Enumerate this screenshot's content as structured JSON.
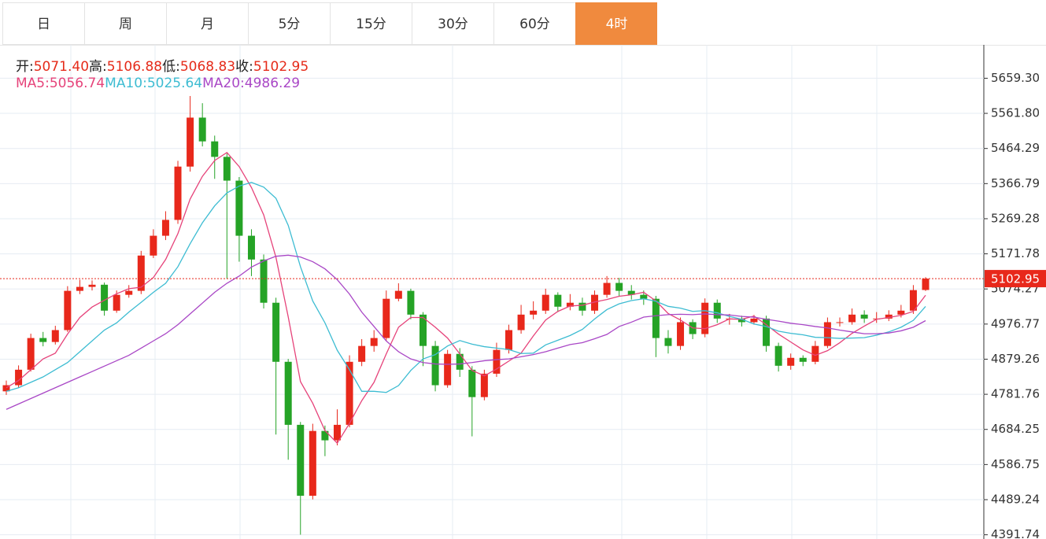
{
  "tabs": {
    "items": [
      "日",
      "周",
      "月",
      "5分",
      "15分",
      "30分",
      "60分",
      "4时"
    ],
    "active": 7
  },
  "chart_data": {
    "type": "candlestick",
    "header": [
      {
        "label": "开:",
        "value": "5071.40"
      },
      {
        "label": "高:",
        "value": "5106.88"
      },
      {
        "label": "低:",
        "value": "5068.83"
      },
      {
        "label": "收:",
        "value": "5102.95"
      }
    ],
    "ma_legend": [
      {
        "label": "MA5:",
        "value": "5056.74"
      },
      {
        "label": "MA10:",
        "value": "5025.64"
      },
      {
        "label": "MA20:",
        "value": "4986.29"
      }
    ],
    "ylim": [
      4380,
      5752
    ],
    "yticks": [
      {
        "value": 5659.3,
        "label": "5659.30"
      },
      {
        "value": 5561.8,
        "label": "5561.80"
      },
      5464.29,
      5366.79,
      5269.28,
      5171.78,
      5074.27,
      4976.77,
      4879.26,
      4781.76,
      4684.25,
      4586.75,
      4489.24,
      4391.74
    ],
    "grid": true,
    "up_color": "#e8281b",
    "down_color": "#25a326",
    "last_color": "#e8281b",
    "open": [
      4790,
      4807,
      4850,
      4938,
      4927,
      4960,
      5069,
      5080,
      5086,
      5014,
      5058,
      5069,
      5167,
      5222,
      5266,
      5414,
      5550,
      5484,
      5441,
      5375,
      5222,
      5156,
      5036,
      4872,
      4697,
      4500,
      4680,
      4654,
      4697,
      4872,
      4916,
      4938,
      5047,
      5069,
      5003,
      4916,
      4807,
      4894,
      4850,
      4774,
      4839,
      4905,
      4960,
      5003,
      5014,
      5058,
      5025,
      5036,
      5014,
      5058,
      5091,
      5069,
      5058,
      5047,
      4938,
      4916,
      4982,
      4949,
      5036,
      4992,
      4992,
      4982,
      4992,
      4916,
      4861,
      4883,
      4872,
      4916,
      4982,
      4982,
      5003,
      4992,
      4992,
      5003,
      5014,
      5071.4
    ],
    "high": [
      4820,
      4862,
      4950,
      4955,
      4972,
      5082,
      5100,
      5098,
      5092,
      5070,
      5085,
      5180,
      5240,
      5290,
      5430,
      5610,
      5590,
      5500,
      5450,
      5385,
      5240,
      5170,
      5050,
      4880,
      4705,
      4700,
      4695,
      4740,
      4890,
      4935,
      4960,
      5070,
      5090,
      5075,
      5010,
      4930,
      4905,
      4910,
      4860,
      4850,
      4925,
      4975,
      5030,
      5040,
      5075,
      5065,
      5060,
      5050,
      5070,
      5110,
      5105,
      5085,
      5070,
      5055,
      4960,
      4995,
      4990,
      5048,
      5045,
      5005,
      5000,
      5002,
      5000,
      4925,
      4895,
      4890,
      4930,
      4995,
      4995,
      5020,
      5015,
      5010,
      5015,
      5030,
      5085,
      5106.88
    ],
    "low": [
      4780,
      4800,
      4845,
      4915,
      4920,
      4955,
      5060,
      5070,
      5000,
      5008,
      5050,
      5060,
      5160,
      5210,
      5255,
      5400,
      5470,
      5380,
      5102,
      5150,
      5110,
      5020,
      4670,
      4600,
      4392,
      4490,
      4610,
      4640,
      4690,
      4860,
      4900,
      4930,
      5040,
      4990,
      4860,
      4790,
      4800,
      4830,
      4665,
      4765,
      4830,
      4895,
      4950,
      4990,
      5005,
      5010,
      5015,
      5000,
      5005,
      5050,
      5055,
      5045,
      5030,
      4885,
      4895,
      4905,
      4935,
      4940,
      4980,
      4975,
      4970,
      4975,
      4900,
      4845,
      4850,
      4860,
      4865,
      4910,
      4970,
      4975,
      4980,
      4980,
      4985,
      4995,
      5005,
      5068.83
    ],
    "close": [
      4807,
      4850,
      4938,
      4927,
      4960,
      5069,
      5080,
      5086,
      5014,
      5058,
      5069,
      5167,
      5222,
      5266,
      5414,
      5550,
      5484,
      5441,
      5375,
      5222,
      5156,
      5036,
      4872,
      4697,
      4500,
      4680,
      4654,
      4697,
      4872,
      4916,
      4938,
      5047,
      5069,
      5003,
      4916,
      4807,
      4894,
      4850,
      4774,
      4839,
      4905,
      4960,
      5003,
      5014,
      5058,
      5025,
      5036,
      5014,
      5058,
      5091,
      5069,
      5058,
      5047,
      4938,
      4916,
      4982,
      4949,
      5036,
      4992,
      4992,
      4982,
      4992,
      4916,
      4861,
      4883,
      4872,
      4916,
      4982,
      4982,
      5003,
      4992,
      4992,
      5003,
      5014,
      5071,
      5102.95
    ],
    "series": [
      {
        "color": "#e6437a",
        "values": [
          4800,
          4820,
          4850,
          4880,
          4896,
          4949,
          4995,
          5024,
          5043,
          5061,
          5075,
          5079,
          5106,
          5156,
          5228,
          5324,
          5387,
          5431,
          5453,
          5414,
          5356,
          5280,
          5162,
          4997,
          4817,
          4757,
          4681,
          4646,
          4701,
          4764,
          4815,
          4894,
          4968,
          4995,
          4995,
          4968,
          4938,
          4894,
          4848,
          4833,
          4852,
          4874,
          4896,
          4944,
          4988,
          5012,
          5027,
          5029,
          5038,
          5045,
          5054,
          5058,
          5065,
          5041,
          5006,
          4988,
          4966,
          4964,
          4975,
          4991,
          4990,
          4999,
          4975,
          4949,
          4927,
          4905,
          4890,
          4903,
          4925,
          4951,
          4971,
          4990,
          4995,
          5001,
          5012,
          5056.74
        ]
      },
      {
        "color": "#3dbcd2",
        "values": [
          4790,
          4800,
          4815,
          4830,
          4850,
          4870,
          4900,
          4930,
          4960,
          4980,
          5010,
          5037,
          5065,
          5090,
          5136,
          5200,
          5258,
          5305,
          5341,
          5360,
          5370,
          5357,
          5326,
          5251,
          5136,
          5041,
          4980,
          4904,
          4850,
          4790,
          4790,
          4787,
          4806,
          4848,
          4880,
          4892,
          4916,
          4931,
          4921,
          4914,
          4910,
          4906,
          4895,
          4896,
          4919,
          4932,
          4945,
          4962,
          4991,
          5017,
          5033,
          5042,
          5047,
          5040,
          5026,
          5021,
          5012,
          5014,
          5008,
          4998,
          4990,
          4977,
          4970,
          4957,
          4951,
          4947,
          4940,
          4939,
          4937,
          4938,
          4939,
          4946,
          4955,
          4968,
          4987,
          5025.64
        ]
      },
      {
        "color": "#a947c6",
        "values": [
          4740,
          4755,
          4770,
          4785,
          4800,
          4815,
          4830,
          4845,
          4860,
          4875,
          4890,
          4910,
          4930,
          4950,
          4975,
          5005,
          5035,
          5065,
          5090,
          5110,
          5135,
          5152,
          5165,
          5168,
          5163,
          5150,
          5130,
          5100,
          5060,
          5010,
          4970,
          4930,
          4900,
          4880,
          4870,
          4866,
          4865,
          4866,
          4870,
          4875,
          4878,
          4880,
          4886,
          4892,
          4900,
          4910,
          4920,
          4925,
          4936,
          4948,
          4970,
          4982,
          4996,
          5000,
          5003,
          5004,
          5003,
          5005,
          5003,
          5002,
          4998,
          4996,
          4990,
          4985,
          4979,
          4975,
          4970,
          4966,
          4960,
          4955,
          4950,
          4950,
          4952,
          4958,
          4968,
          4986.29
        ]
      }
    ]
  }
}
